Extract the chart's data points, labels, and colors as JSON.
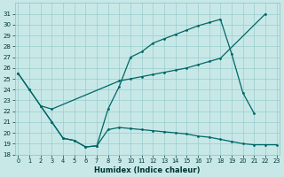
{
  "xlabel": "Humidex (Indice chaleur)",
  "bg_color": "#c8e8e8",
  "grid_color": "#99cccc",
  "line_color": "#006666",
  "ylim": [
    18,
    32
  ],
  "yticks": [
    18,
    19,
    20,
    21,
    22,
    23,
    24,
    25,
    26,
    27,
    28,
    29,
    30,
    31
  ],
  "xticks": [
    0,
    1,
    2,
    3,
    4,
    5,
    6,
    7,
    8,
    9,
    10,
    11,
    12,
    13,
    14,
    15,
    16,
    17,
    18,
    19,
    20,
    21,
    22,
    23
  ],
  "s1_x": [
    0,
    1,
    2,
    3,
    9,
    10,
    11,
    12,
    13,
    14,
    15,
    16,
    17,
    18,
    22
  ],
  "s1_y": [
    25.5,
    24.0,
    22.5,
    22.2,
    24.8,
    25.0,
    25.2,
    25.4,
    25.6,
    25.8,
    26.0,
    26.3,
    26.6,
    26.9,
    31.0
  ],
  "s2_x": [
    0,
    1,
    2,
    3,
    4,
    5,
    6,
    7,
    8,
    9,
    10,
    11,
    12,
    13,
    14,
    15,
    16,
    17,
    18,
    19,
    20,
    21
  ],
  "s2_y": [
    25.5,
    24.0,
    22.5,
    21.0,
    19.5,
    19.3,
    18.7,
    18.8,
    22.2,
    24.3,
    27.0,
    27.5,
    28.3,
    28.7,
    29.1,
    29.5,
    29.9,
    30.2,
    30.5,
    27.3,
    23.7,
    21.8
  ],
  "s3_x": [
    2,
    3,
    4,
    5,
    6,
    7,
    8,
    9,
    10,
    11,
    12,
    13,
    14,
    15,
    16,
    17,
    18,
    19,
    20,
    21,
    22,
    23
  ],
  "s3_y": [
    22.5,
    21.0,
    19.5,
    19.3,
    18.7,
    18.8,
    20.3,
    20.5,
    20.4,
    20.3,
    20.2,
    20.1,
    20.0,
    19.9,
    19.7,
    19.6,
    19.4,
    19.2,
    19.0,
    18.9,
    18.9,
    18.9
  ]
}
